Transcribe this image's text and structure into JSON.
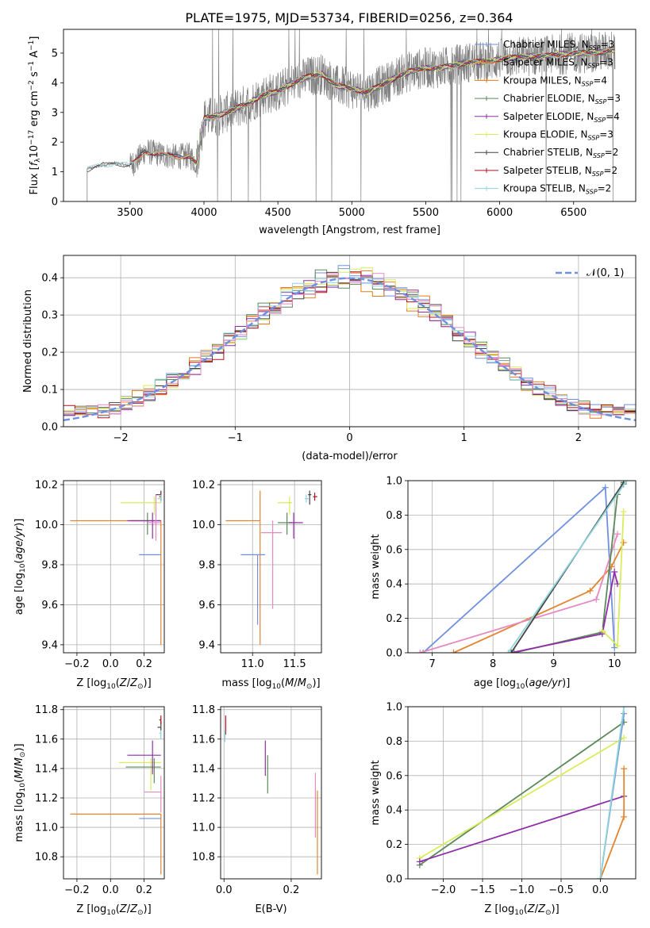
{
  "figure": {
    "title": "PLATE=1975, MJD=53734, FIBERID=0256, z=0.364"
  },
  "colors": {
    "chabrier_miles": "#6f8fe0",
    "salpeter_miles": "#e3852f",
    "kroupa_miles": "#e57b19",
    "chabrier_elodie": "#5a8a5a",
    "salpeter_elodie": "#8f2ea8",
    "kroupa_elodie": "#d9ec5a",
    "chabrier_stelib": "#444444",
    "salpeter_stelib": "#b0141e",
    "kroupa_stelib": "#8fd3dc",
    "pink": "#e58ac0",
    "data": "#808080",
    "gauss": "#6f8fe0"
  },
  "chart_data": [
    {
      "id": "spectrum",
      "type": "line",
      "title": "PLATE=1975, MJD=53734, FIBERID=0256, z=0.364",
      "xlabel": "wavelength [Angstrom, rest frame]",
      "ylabel": "Flux [fλ 10^-17 erg cm^-2 s^-1 A^-1]",
      "xlim": [
        3050,
        6920
      ],
      "ylim": [
        0,
        5.8
      ],
      "xticks": [
        3500,
        4000,
        4500,
        5000,
        5500,
        6000,
        6500
      ],
      "yticks": [
        0,
        1,
        2,
        3,
        4,
        5
      ],
      "grid": false,
      "legend": "top-right",
      "continuum": {
        "x": [
          3210,
          3300,
          3400,
          3500,
          3550,
          3600,
          3700,
          3800,
          3900,
          3950,
          4000,
          4100,
          4200,
          4300,
          4400,
          4500,
          4600,
          4700,
          4800,
          4900,
          5000,
          5100,
          5200,
          5300,
          5400,
          5500,
          5600,
          5700,
          5800,
          5900,
          6000,
          6100,
          6200,
          6300,
          6400,
          6500,
          6600,
          6700,
          6780
        ],
        "y": [
          1.1,
          1.2,
          1.3,
          1.2,
          1.4,
          1.7,
          1.6,
          1.5,
          1.55,
          1.3,
          2.8,
          2.9,
          3.1,
          3.3,
          3.6,
          3.7,
          4.0,
          4.2,
          4.3,
          3.9,
          3.8,
          3.7,
          3.9,
          4.2,
          4.4,
          4.5,
          4.5,
          4.6,
          4.7,
          4.7,
          4.8,
          4.85,
          4.9,
          4.9,
          4.95,
          5.0,
          5.0,
          5.05,
          5.1
        ]
      },
      "series": [
        {
          "name": "Chabrier MILES, N_SSP=3",
          "color": "chabrier_miles"
        },
        {
          "name": "Salpeter MILES, N_SSP=3",
          "color": "salpeter_miles"
        },
        {
          "name": "Kroupa MILES, N_SSP=4",
          "color": "kroupa_miles"
        },
        {
          "name": "Chabrier ELODIE, N_SSP=3",
          "color": "chabrier_elodie"
        },
        {
          "name": "Salpeter ELODIE, N_SSP=4",
          "color": "salpeter_elodie"
        },
        {
          "name": "Kroupa ELODIE, N_SSP=3",
          "color": "kroupa_elodie"
        },
        {
          "name": "Chabrier STELIB, N_SSP=2",
          "color": "chabrier_stelib"
        },
        {
          "name": "Salpeter STELIB, N_SSP=2",
          "color": "salpeter_stelib"
        },
        {
          "name": "Kroupa STELIB, N_SSP=2",
          "color": "kroupa_stelib"
        }
      ]
    },
    {
      "id": "residuals",
      "type": "area",
      "xlabel": "(data-model)/error",
      "ylabel": "Normed distribution",
      "xlim": [
        -2.5,
        2.5
      ],
      "ylim": [
        0,
        0.46
      ],
      "xticks": [
        -2,
        -1,
        0,
        1,
        2
      ],
      "yticks": [
        0.0,
        0.1,
        0.2,
        0.3,
        0.4
      ],
      "grid": true,
      "legend": "top-right",
      "legend_label": "𝒩(0, 1)",
      "bins": 50
    },
    {
      "id": "age_vs_Z",
      "type": "scatter",
      "xlabel": "Z [log10(Z/Z⊙)]",
      "ylabel": "age [log10(age/yr)]",
      "xlim": [
        -0.28,
        0.32
      ],
      "ylim": [
        9.36,
        10.22
      ],
      "xticks": [
        -0.2,
        0.0,
        0.2
      ],
      "yticks": [
        9.4,
        9.6,
        9.8,
        10.0,
        10.2
      ],
      "grid": true,
      "points": [
        {
          "color": "salpeter_miles",
          "x": 0.3,
          "y": 10.02,
          "xlo": -0.24,
          "xhi": 0.3,
          "ylo": 9.4,
          "yhi": 10.02
        },
        {
          "color": "chabrier_miles",
          "x": 0.3,
          "y": 9.85,
          "xlo": 0.17,
          "xhi": 0.3,
          "ylo": 9.85,
          "yhi": 9.85
        },
        {
          "color": "kroupa_elodie",
          "x": 0.26,
          "y": 10.11,
          "xlo": 0.06,
          "xhi": 0.3,
          "ylo": 10.05,
          "yhi": 10.14
        },
        {
          "color": "chabrier_elodie",
          "x": 0.22,
          "y": 10.02,
          "xlo": 0.12,
          "xhi": 0.3,
          "ylo": 9.95,
          "yhi": 10.06
        },
        {
          "color": "salpeter_elodie",
          "x": 0.25,
          "y": 10.02,
          "xlo": 0.1,
          "xhi": 0.3,
          "ylo": 9.93,
          "yhi": 10.06
        },
        {
          "color": "pink",
          "x": 0.27,
          "y": 10.01,
          "xlo": 0.22,
          "xhi": 0.3,
          "ylo": 9.92,
          "yhi": 10.15
        },
        {
          "color": "chabrier_stelib",
          "x": 0.3,
          "y": 10.15,
          "xlo": 0.27,
          "xhi": 0.3,
          "ylo": 10.12,
          "yhi": 10.17
        },
        {
          "color": "salpeter_stelib",
          "x": 0.3,
          "y": 10.14,
          "xlo": 0.29,
          "xhi": 0.3,
          "ylo": 10.12,
          "yhi": 10.16
        },
        {
          "color": "kroupa_stelib",
          "x": 0.3,
          "y": 10.13,
          "xlo": 0.28,
          "xhi": 0.3,
          "ylo": 10.11,
          "yhi": 10.15
        }
      ]
    },
    {
      "id": "age_vs_mass",
      "type": "scatter",
      "xlabel": "mass [log10(M/M⊙)]",
      "ylabel": "",
      "xlim": [
        10.62,
        11.82
      ],
      "ylim": [
        9.36,
        10.22
      ],
      "xticks": [
        11.0,
        11.5
      ],
      "yticks": [
        9.4,
        9.6,
        9.8,
        10.0,
        10.2
      ],
      "grid": true,
      "points": [
        {
          "color": "salpeter_miles",
          "x": 11.09,
          "y": 10.02,
          "xlo": 10.68,
          "xhi": 11.09,
          "ylo": 9.4,
          "yhi": 10.17
        },
        {
          "color": "chabrier_miles",
          "x": 11.06,
          "y": 9.85,
          "xlo": 10.86,
          "xhi": 11.15,
          "ylo": 9.5,
          "yhi": 9.85
        },
        {
          "color": "pink",
          "x": 11.24,
          "y": 9.96,
          "xlo": 11.1,
          "xhi": 11.35,
          "ylo": 9.58,
          "yhi": 10.02
        },
        {
          "color": "kroupa_elodie",
          "x": 11.44,
          "y": 10.11,
          "xlo": 11.3,
          "xhi": 11.47,
          "ylo": 10.05,
          "yhi": 10.14
        },
        {
          "color": "chabrier_elodie",
          "x": 11.41,
          "y": 10.01,
          "xlo": 11.3,
          "xhi": 11.47,
          "ylo": 9.95,
          "yhi": 10.06
        },
        {
          "color": "salpeter_elodie",
          "x": 11.49,
          "y": 10.01,
          "xlo": 11.43,
          "xhi": 11.6,
          "ylo": 9.93,
          "yhi": 10.06
        },
        {
          "color": "kroupa_stelib",
          "x": 11.64,
          "y": 10.13,
          "xlo": 11.62,
          "xhi": 11.67,
          "ylo": 10.11,
          "yhi": 10.15
        },
        {
          "color": "chabrier_stelib",
          "x": 11.68,
          "y": 10.15,
          "xlo": 11.66,
          "xhi": 11.7,
          "ylo": 10.1,
          "yhi": 10.17
        },
        {
          "color": "salpeter_stelib",
          "x": 11.74,
          "y": 10.14,
          "xlo": 11.72,
          "xhi": 11.77,
          "ylo": 10.12,
          "yhi": 10.16
        }
      ]
    },
    {
      "id": "weight_vs_age",
      "type": "line",
      "xlabel": "age [log10(age/yr)]",
      "ylabel": "mass weight",
      "xlim": [
        6.6,
        10.35
      ],
      "ylim": [
        0,
        1.0
      ],
      "xticks": [
        7,
        8,
        9,
        10
      ],
      "yticks": [
        0.0,
        0.2,
        0.4,
        0.6,
        0.8,
        1.0
      ],
      "grid": true,
      "series": [
        {
          "color": "chabrier_miles",
          "x": [
            6.85,
            9.85,
            10.0
          ],
          "y": [
            0.0,
            0.96,
            0.03
          ]
        },
        {
          "color": "salpeter_miles",
          "x": [
            7.35,
            9.6,
            9.95,
            10.15
          ],
          "y": [
            0.0,
            0.36,
            0.5,
            0.64
          ]
        },
        {
          "color": "pink",
          "x": [
            6.8,
            9.7,
            10.05
          ],
          "y": [
            0.0,
            0.31,
            0.69
          ]
        },
        {
          "color": "chabrier_elodie",
          "x": [
            8.35,
            9.8,
            10.05,
            10.15
          ],
          "y": [
            0.0,
            0.12,
            0.92,
            0.98
          ]
        },
        {
          "color": "salpeter_elodie",
          "x": [
            8.3,
            9.8,
            10.0,
            10.05
          ],
          "y": [
            0.0,
            0.11,
            0.47,
            0.4
          ]
        },
        {
          "color": "kroupa_elodie",
          "x": [
            9.8,
            10.05,
            10.15
          ],
          "y": [
            0.13,
            0.04,
            0.82
          ]
        },
        {
          "color": "chabrier_stelib",
          "x": [
            8.3,
            10.15
          ],
          "y": [
            0.0,
            0.99
          ]
        },
        {
          "color": "kroupa_stelib",
          "x": [
            8.25,
            10.2
          ],
          "y": [
            0.0,
            1.0
          ]
        }
      ]
    },
    {
      "id": "mass_vs_Z",
      "type": "scatter",
      "xlabel": "Z [log10(Z/Z⊙)]",
      "ylabel": "mass [log10(M/M⊙)]",
      "xlim": [
        -0.28,
        0.32
      ],
      "ylim": [
        10.65,
        11.82
      ],
      "xticks": [
        -0.2,
        0.0,
        0.2
      ],
      "yticks": [
        10.8,
        11.0,
        11.2,
        11.4,
        11.6,
        11.8
      ],
      "grid": true,
      "points": [
        {
          "color": "salpeter_miles",
          "x": 0.3,
          "y": 11.09,
          "xlo": -0.24,
          "xhi": 0.3,
          "ylo": 10.68,
          "yhi": 11.09
        },
        {
          "color": "chabrier_miles",
          "x": 0.3,
          "y": 11.06,
          "xlo": 0.17,
          "xhi": 0.3,
          "ylo": 11.06,
          "yhi": 11.06
        },
        {
          "color": "pink",
          "x": 0.3,
          "y": 11.24,
          "xlo": 0.2,
          "xhi": 0.3,
          "ylo": 11.1,
          "yhi": 11.35
        },
        {
          "color": "kroupa_elodie",
          "x": 0.24,
          "y": 11.44,
          "xlo": 0.05,
          "xhi": 0.3,
          "ylo": 11.25,
          "yhi": 11.47
        },
        {
          "color": "chabrier_elodie",
          "x": 0.26,
          "y": 11.41,
          "xlo": 0.09,
          "xhi": 0.3,
          "ylo": 11.3,
          "yhi": 11.47
        },
        {
          "color": "salpeter_elodie",
          "x": 0.25,
          "y": 11.49,
          "xlo": 0.1,
          "xhi": 0.3,
          "ylo": 11.36,
          "yhi": 11.59
        },
        {
          "color": "kroupa_stelib",
          "x": 0.3,
          "y": 11.64,
          "xlo": 0.29,
          "xhi": 0.3,
          "ylo": 11.6,
          "yhi": 11.67
        },
        {
          "color": "chabrier_stelib",
          "x": 0.3,
          "y": 11.68,
          "xlo": 0.28,
          "xhi": 0.3,
          "ylo": 11.66,
          "yhi": 11.72
        },
        {
          "color": "salpeter_stelib",
          "x": 0.3,
          "y": 11.73,
          "xlo": 0.29,
          "xhi": 0.3,
          "ylo": 11.7,
          "yhi": 11.76
        }
      ]
    },
    {
      "id": "mass_vs_ebv",
      "type": "scatter",
      "xlabel": "E(B-V)",
      "ylabel": "",
      "xlim": [
        -0.01,
        0.29
      ],
      "ylim": [
        10.65,
        11.82
      ],
      "xticks": [
        0.0,
        0.2
      ],
      "yticks": [
        10.8,
        11.0,
        11.2,
        11.4,
        11.6,
        11.8
      ],
      "grid": true,
      "points": [
        {
          "color": "salpeter_stelib",
          "x": 0.005,
          "y": 11.7,
          "xlo": 0.005,
          "xhi": 0.005,
          "ylo": 11.63,
          "yhi": 11.76
        },
        {
          "color": "kroupa_stelib",
          "x": 0.003,
          "y": 11.62,
          "xlo": 0.003,
          "xhi": 0.003,
          "ylo": 11.58,
          "yhi": 11.66
        },
        {
          "color": "salpeter_elodie",
          "x": 0.123,
          "y": 11.45,
          "xlo": 0.123,
          "xhi": 0.123,
          "ylo": 11.35,
          "yhi": 11.59
        },
        {
          "color": "chabrier_elodie",
          "x": 0.13,
          "y": 11.4,
          "xlo": 0.13,
          "xhi": 0.13,
          "ylo": 11.23,
          "yhi": 11.49
        },
        {
          "color": "pink",
          "x": 0.272,
          "y": 11.2,
          "xlo": 0.272,
          "xhi": 0.272,
          "ylo": 10.93,
          "yhi": 11.37
        },
        {
          "color": "salpeter_miles",
          "x": 0.278,
          "y": 11.05,
          "xlo": 0.278,
          "xhi": 0.278,
          "ylo": 10.68,
          "yhi": 11.25
        }
      ]
    },
    {
      "id": "weight_vs_Z",
      "type": "line",
      "xlabel": "Z [log10(Z/Z⊙)]",
      "ylabel": "mass weight",
      "xlim": [
        -2.45,
        0.45
      ],
      "ylim": [
        0,
        1.0
      ],
      "xticks": [
        -2.0,
        -1.5,
        -1.0,
        -0.5,
        0.0
      ],
      "yticks": [
        0.0,
        0.2,
        0.4,
        0.6,
        0.8,
        1.0
      ],
      "grid": true,
      "series": [
        {
          "color": "chabrier_elodie",
          "x": [
            -2.3,
            0.3
          ],
          "y": [
            0.08,
            0.91
          ]
        },
        {
          "color": "kroupa_elodie",
          "x": [
            -2.3,
            0.3
          ],
          "y": [
            0.12,
            0.82
          ]
        },
        {
          "color": "salpeter_elodie",
          "x": [
            -2.3,
            0.3
          ],
          "y": [
            0.1,
            0.48
          ]
        },
        {
          "color": "salpeter_miles",
          "x": [
            0.0,
            0.3,
            0.3
          ],
          "y": [
            0.0,
            0.36,
            0.64
          ]
        },
        {
          "color": "chabrier_miles",
          "x": [
            0.0,
            0.3
          ],
          "y": [
            0.0,
            0.96
          ]
        },
        {
          "color": "kroupa_stelib",
          "x": [
            0.0,
            0.3
          ],
          "y": [
            0.0,
            1.0
          ]
        }
      ]
    }
  ]
}
